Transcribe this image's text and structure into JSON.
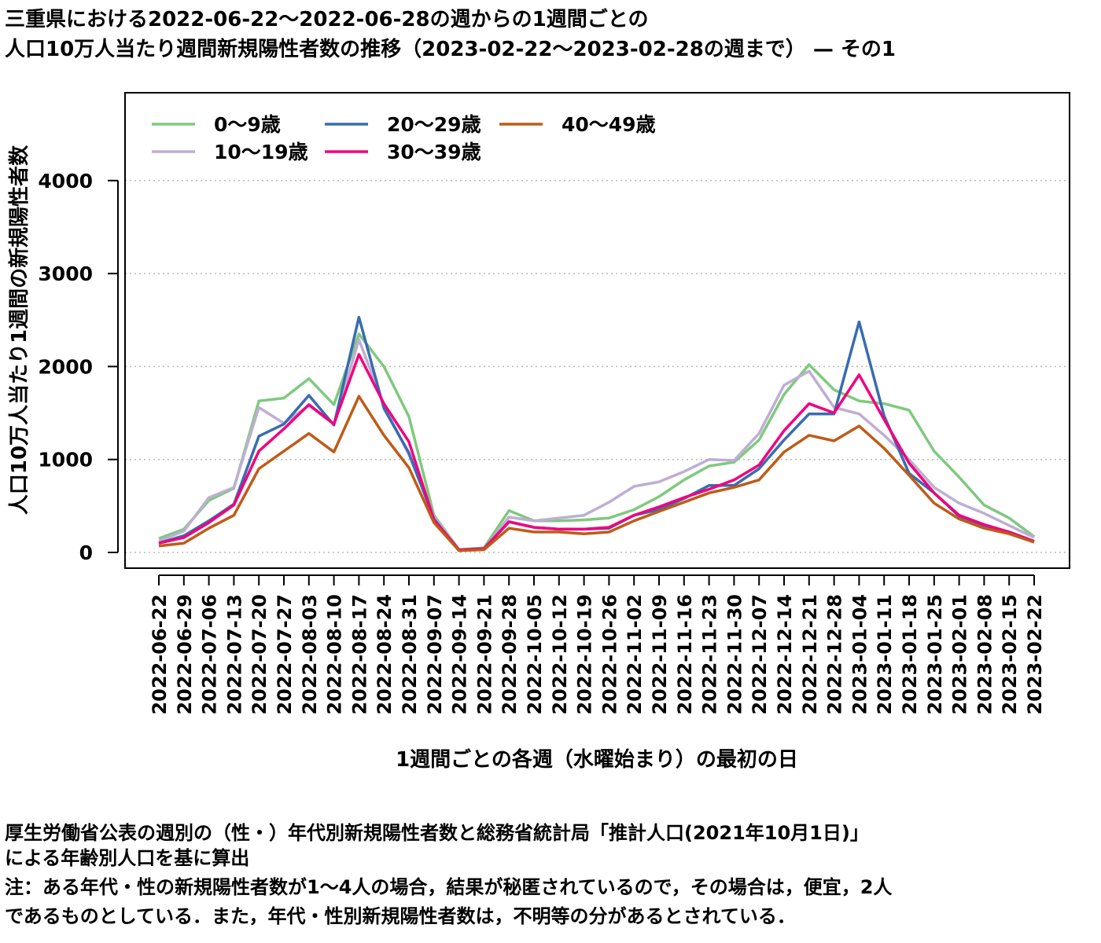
{
  "title_line1": "三重県における2022-06-22〜2022-06-28の週からの1週間ごとの",
  "title_line2": "人口10万人当たり週間新規陽性者数の推移（2023-02-22〜2023-02-28の週まで） — その1",
  "notes": [
    "厚生労働省公表の週別の（性・）年代別新規陽性者数と総務省統計局「推計人口(2021年10月1日)」",
    "による年齢別人口を基に算出",
    "注：ある年代・性の新規陽性者数が1〜4人の場合，結果が秘匿されているので，その場合は，便宜，2人",
    "であるものとしている．また，年代・性別新規陽性者数は，不明等の分があるとされている．"
  ],
  "chart_data": {
    "type": "line",
    "xlabel": "1週間ごとの各週（水曜始まり）の最初の日",
    "ylabel": "人口10万人当たり1週間の新規陽性者数",
    "ylim": [
      -200,
      4900
    ],
    "yticks": [
      0,
      1000,
      2000,
      3000,
      4000
    ],
    "grid": "horizontal dotted",
    "legend_position": "top-left",
    "x": [
      "2022-06-22",
      "2022-06-29",
      "2022-07-06",
      "2022-07-13",
      "2022-07-20",
      "2022-07-27",
      "2022-08-03",
      "2022-08-10",
      "2022-08-17",
      "2022-08-24",
      "2022-08-31",
      "2022-09-07",
      "2022-09-14",
      "2022-09-21",
      "2022-09-28",
      "2022-10-05",
      "2022-10-12",
      "2022-10-19",
      "2022-10-26",
      "2022-11-02",
      "2022-11-09",
      "2022-11-16",
      "2022-11-23",
      "2022-11-30",
      "2022-12-07",
      "2022-12-14",
      "2022-12-21",
      "2022-12-28",
      "2023-01-04",
      "2023-01-11",
      "2023-01-18",
      "2023-01-25",
      "2023-02-01",
      "2023-02-08",
      "2023-02-15",
      "2023-02-22"
    ],
    "series": [
      {
        "name": "0〜9歳",
        "color": "#7fc97f",
        "values": [
          150,
          250,
          560,
          690,
          1630,
          1660,
          1870,
          1590,
          2350,
          2000,
          1460,
          400,
          30,
          50,
          450,
          340,
          340,
          350,
          370,
          460,
          600,
          780,
          930,
          970,
          1210,
          1700,
          2020,
          1750,
          1630,
          1600,
          1530,
          1090,
          810,
          510,
          370,
          170
        ]
      },
      {
        "name": "10〜19歳",
        "color": "#beaed4",
        "values": [
          120,
          230,
          590,
          700,
          1560,
          1390,
          1580,
          1380,
          2290,
          1580,
          1050,
          380,
          20,
          30,
          380,
          340,
          370,
          400,
          540,
          710,
          760,
          870,
          1000,
          990,
          1280,
          1800,
          1950,
          1560,
          1490,
          1260,
          1000,
          700,
          530,
          420,
          290,
          160
        ]
      },
      {
        "name": "20〜29歳",
        "color": "#386cb0",
        "values": [
          100,
          180,
          340,
          520,
          1250,
          1380,
          1690,
          1370,
          2530,
          1550,
          1070,
          360,
          20,
          40,
          330,
          270,
          250,
          250,
          260,
          400,
          460,
          580,
          720,
          720,
          900,
          1210,
          1490,
          1490,
          2480,
          1470,
          850,
          640,
          390,
          290,
          220,
          120
        ]
      },
      {
        "name": "30〜39歳",
        "color": "#f0027f",
        "values": [
          100,
          160,
          320,
          510,
          1090,
          1330,
          1590,
          1380,
          2130,
          1600,
          1190,
          350,
          30,
          40,
          330,
          270,
          250,
          250,
          270,
          400,
          490,
          590,
          680,
          780,
          940,
          1310,
          1600,
          1500,
          1910,
          1430,
          960,
          640,
          400,
          300,
          220,
          120
        ]
      },
      {
        "name": "40〜49歳",
        "color": "#bf5b17",
        "values": [
          70,
          100,
          260,
          400,
          900,
          1090,
          1280,
          1080,
          1680,
          1260,
          910,
          320,
          20,
          30,
          260,
          220,
          220,
          200,
          220,
          340,
          440,
          540,
          640,
          700,
          780,
          1080,
          1260,
          1200,
          1360,
          1120,
          830,
          530,
          360,
          260,
          200,
          110
        ]
      }
    ]
  }
}
